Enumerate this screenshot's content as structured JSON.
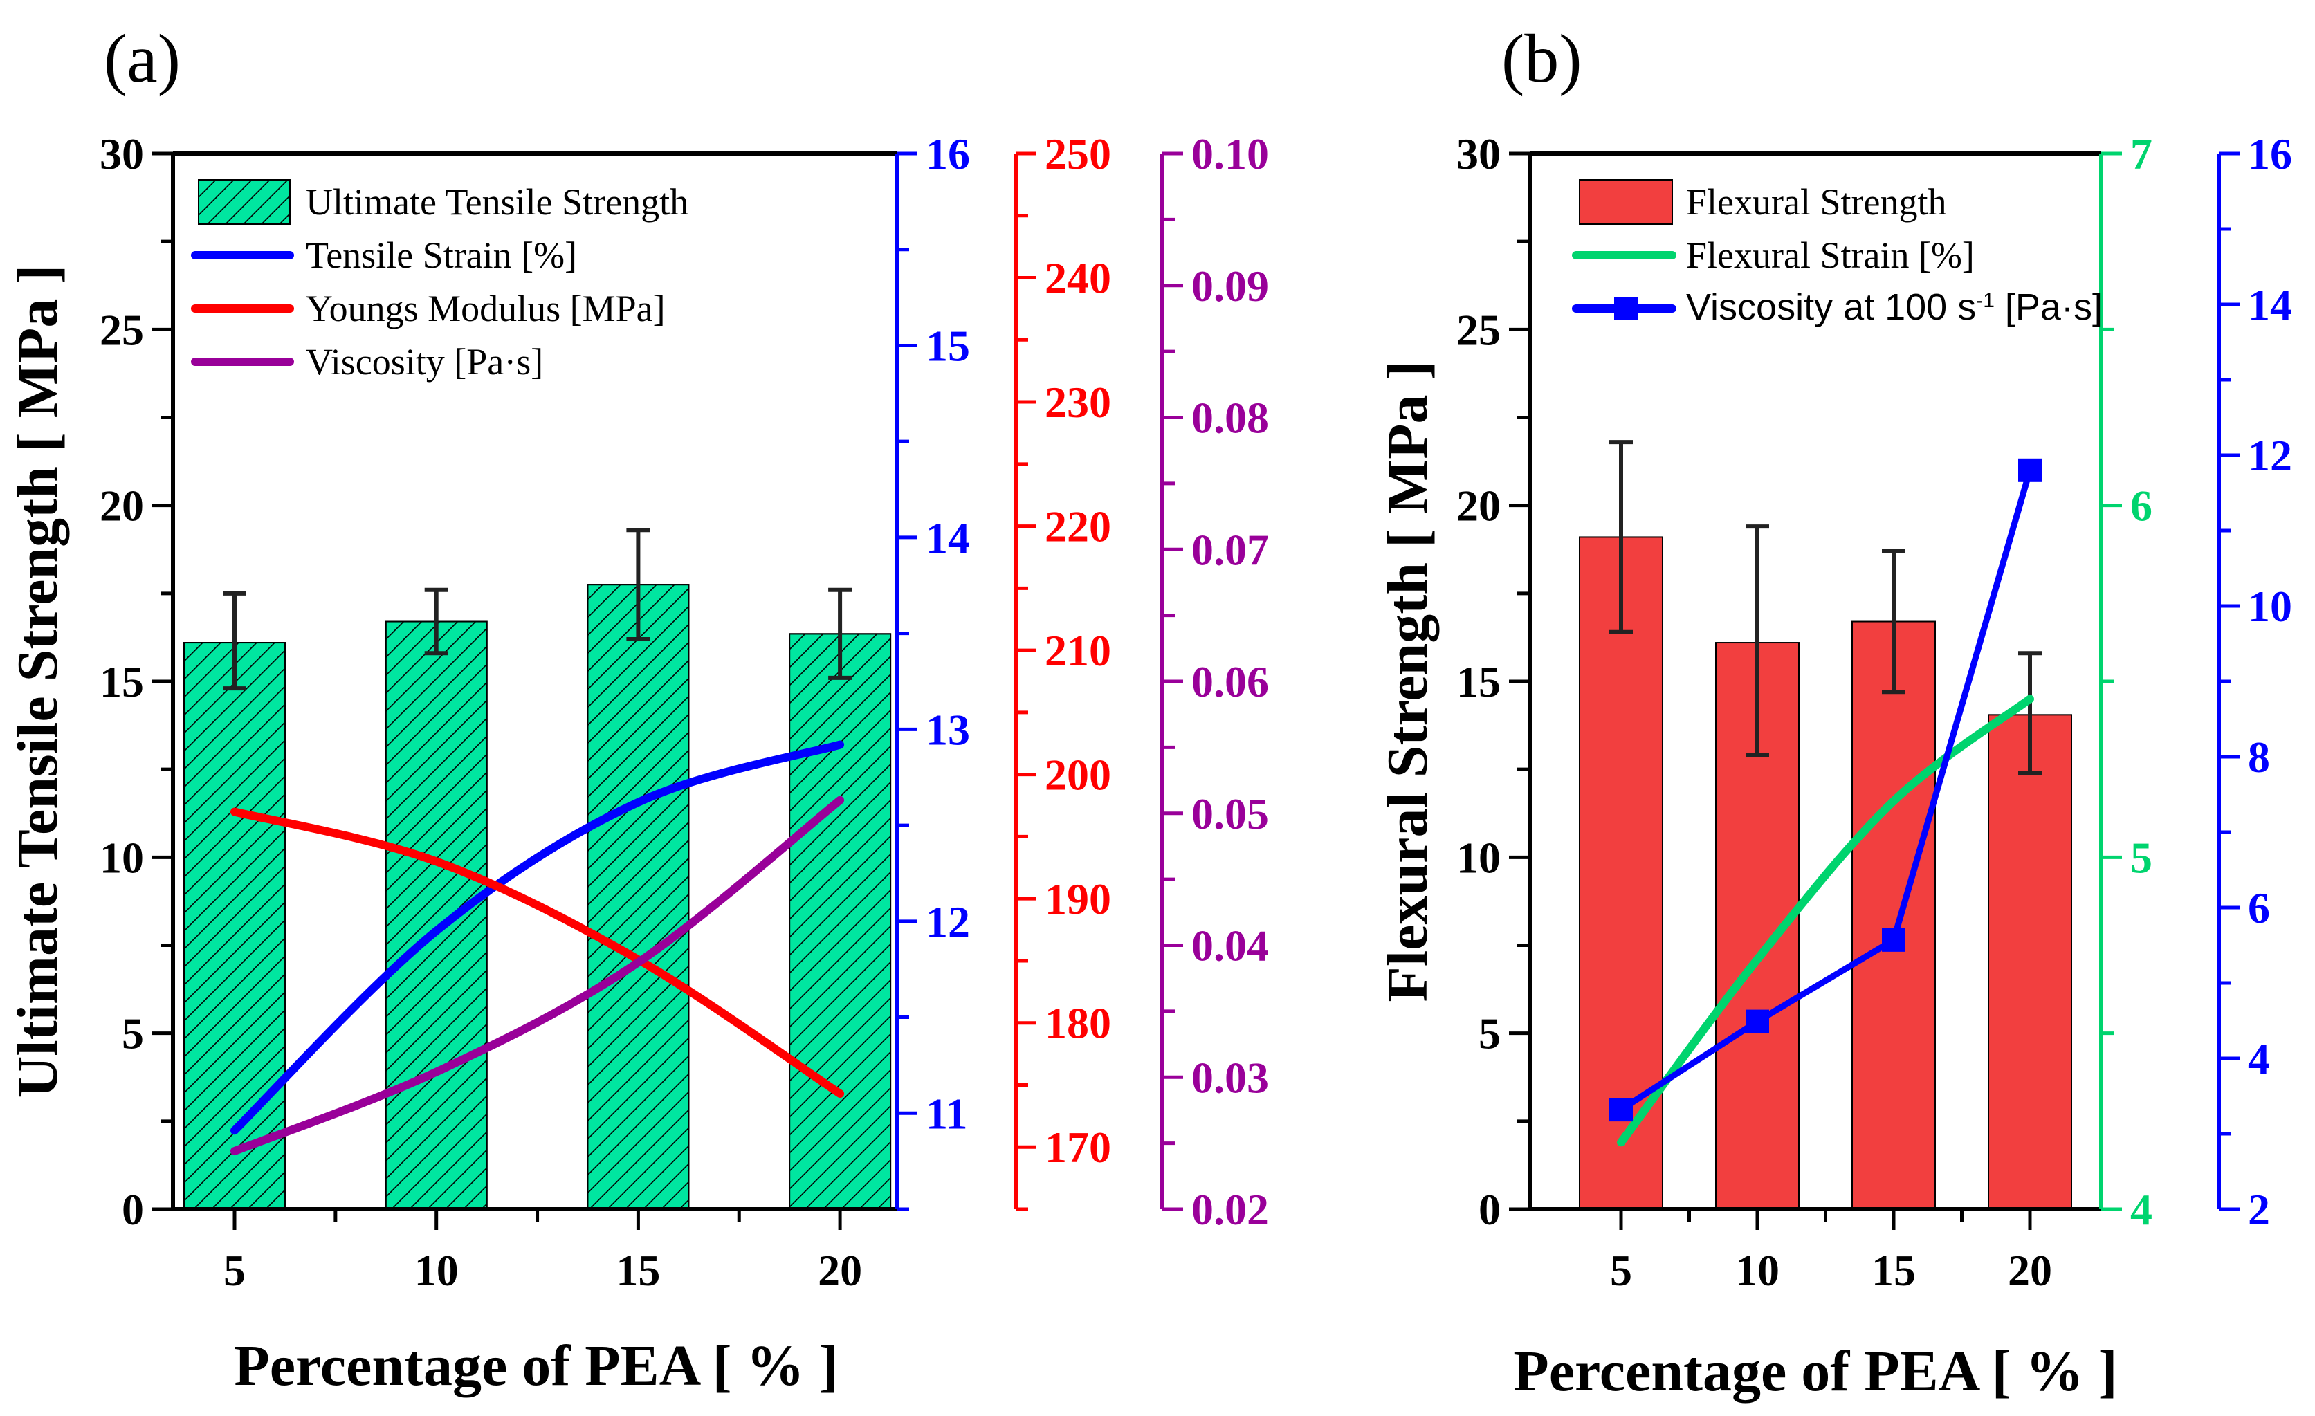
{
  "chart_data": [
    {
      "panel_label": "(a)",
      "type": "bar+line",
      "categories": [
        "5",
        "10",
        "15",
        "20"
      ],
      "x": [
        5,
        10,
        15,
        20
      ],
      "xlabel": "Percentage of PEA [ % ]",
      "ylabel": "Ultimate Tensile Strength [ MPa ]",
      "axes": [
        {
          "id": "left",
          "color": "#000000",
          "ylim": [
            0,
            30
          ],
          "major": 5,
          "minor": 2.5,
          "decimals": 0
        },
        {
          "id": "strain",
          "color": "#0000FF",
          "ylim": [
            10.5,
            16
          ],
          "major": 1,
          "minor": 0.5,
          "decimals": 0,
          "first_label": 11
        },
        {
          "id": "modulus",
          "color": "#FF0000",
          "ylim": [
            165,
            250
          ],
          "major": 10,
          "minor": 5,
          "decimals": 0,
          "first_label": 170
        },
        {
          "id": "viscosity",
          "color": "#990099",
          "ylim": [
            0.02,
            0.1
          ],
          "major": 0.01,
          "minor": 0.005,
          "decimals": 2
        }
      ],
      "series": [
        {
          "name": "Ultimate Tensile Strength",
          "kind": "bar",
          "axis": "left",
          "color": "#00E6A0",
          "hatch": true,
          "values": [
            16.1,
            16.7,
            17.75,
            16.35
          ],
          "err_low": [
            14.8,
            15.8,
            16.2,
            15.1
          ],
          "err_high": [
            17.5,
            17.6,
            19.3,
            17.6
          ]
        },
        {
          "name": "Tensile Strain [%]",
          "kind": "line",
          "axis": "strain",
          "color": "#0000FF",
          "values": [
            10.91,
            11.95,
            12.62,
            12.92
          ]
        },
        {
          "name": "Youngs Modulus [MPa]",
          "kind": "line",
          "axis": "modulus",
          "color": "#FF0000",
          "values": [
            197.0,
            193.0,
            185.1,
            174.3
          ]
        },
        {
          "name": "Viscosity [Pa·s]",
          "kind": "line",
          "axis": "viscosity",
          "color": "#990099",
          "values": [
            0.0244,
            0.0304,
            0.0387,
            0.051
          ]
        }
      ],
      "legend_position": "top-left"
    },
    {
      "panel_label": "(b)",
      "type": "bar+line",
      "categories": [
        "5",
        "10",
        "15",
        "20"
      ],
      "x": [
        5,
        10,
        15,
        20
      ],
      "xlabel": "Percentage of PEA [ % ]",
      "ylabel": "Flexural Strength [ MPa ]",
      "axes": [
        {
          "id": "left",
          "color": "#000000",
          "ylim": [
            0,
            30
          ],
          "major": 5,
          "minor": 2.5,
          "decimals": 0
        },
        {
          "id": "strain",
          "color": "#00D46E",
          "ylim": [
            4,
            7
          ],
          "major": 1,
          "minor": 0.5,
          "decimals": 0
        },
        {
          "id": "viscosity",
          "color": "#0000FF",
          "ylim": [
            2,
            16
          ],
          "major": 2,
          "minor": 1,
          "decimals": 0
        }
      ],
      "series": [
        {
          "name": "Flexural Strength",
          "kind": "bar",
          "axis": "left",
          "color": "#F23F3F",
          "hatch": false,
          "values": [
            19.1,
            16.1,
            16.7,
            14.05
          ],
          "err_low": [
            16.4,
            12.9,
            14.7,
            12.4
          ],
          "err_high": [
            21.8,
            19.4,
            18.7,
            15.8
          ]
        },
        {
          "name": "Flexural Strain [%]",
          "kind": "line",
          "axis": "strain",
          "color": "#00D46E",
          "values": [
            4.19,
            4.71,
            5.16,
            5.45
          ]
        },
        {
          "name": "Viscosity at 100 s",
          "name_sup": "-1",
          "name_suffix": " [Pa·s]",
          "kind": "line-marker",
          "axis": "viscosity",
          "color": "#0000FF",
          "values": [
            3.32,
            4.49,
            5.57,
            11.8
          ]
        }
      ],
      "legend_position": "top-left"
    }
  ]
}
